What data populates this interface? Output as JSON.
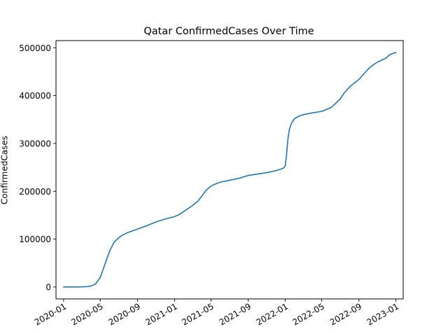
{
  "chart_data": {
    "type": "line",
    "title": "Qatar  ConfirmedCases Over Time",
    "xlabel": "",
    "ylabel": "ConfirmedCases",
    "xlim": [
      "2019-12-07",
      "2023-01-25"
    ],
    "ylim": [
      -25000,
      515000
    ],
    "x_ticks": [
      "2020-01",
      "2020-05",
      "2020-09",
      "2021-01",
      "2021-05",
      "2021-09",
      "2022-01",
      "2022-05",
      "2022-09",
      "2023-01"
    ],
    "y_ticks": [
      "0",
      "100000",
      "200000",
      "300000",
      "400000",
      "500000"
    ],
    "y_tick_values": [
      0,
      100000,
      200000,
      300000,
      400000,
      500000
    ],
    "grid": false,
    "series_color": "#1f77b4",
    "series": [
      {
        "points": [
          [
            "2020-01-01",
            0
          ],
          [
            "2020-02-01",
            0
          ],
          [
            "2020-03-01",
            100
          ],
          [
            "2020-03-20",
            800
          ],
          [
            "2020-04-01",
            2000
          ],
          [
            "2020-04-15",
            6000
          ],
          [
            "2020-05-01",
            20000
          ],
          [
            "2020-05-15",
            45000
          ],
          [
            "2020-06-01",
            75000
          ],
          [
            "2020-06-15",
            93000
          ],
          [
            "2020-07-01",
            103000
          ],
          [
            "2020-07-15",
            109000
          ],
          [
            "2020-08-01",
            114000
          ],
          [
            "2020-09-01",
            121000
          ],
          [
            "2020-10-01",
            128000
          ],
          [
            "2020-11-01",
            136000
          ],
          [
            "2020-12-01",
            142000
          ],
          [
            "2021-01-01",
            147000
          ],
          [
            "2021-01-15",
            151000
          ],
          [
            "2021-02-01",
            158000
          ],
          [
            "2021-03-01",
            170000
          ],
          [
            "2021-03-20",
            180000
          ],
          [
            "2021-04-01",
            190000
          ],
          [
            "2021-04-15",
            202000
          ],
          [
            "2021-05-01",
            211000
          ],
          [
            "2021-05-15",
            215000
          ],
          [
            "2021-06-01",
            219000
          ],
          [
            "2021-07-01",
            223000
          ],
          [
            "2021-08-01",
            227000
          ],
          [
            "2021-09-01",
            233000
          ],
          [
            "2021-10-01",
            236000
          ],
          [
            "2021-11-01",
            239000
          ],
          [
            "2021-12-01",
            243000
          ],
          [
            "2021-12-25",
            248000
          ],
          [
            "2022-01-01",
            253000
          ],
          [
            "2022-01-05",
            275000
          ],
          [
            "2022-01-10",
            310000
          ],
          [
            "2022-01-15",
            330000
          ],
          [
            "2022-01-22",
            343000
          ],
          [
            "2022-02-01",
            352000
          ],
          [
            "2022-02-15",
            357000
          ],
          [
            "2022-03-01",
            360000
          ],
          [
            "2022-04-01",
            364000
          ],
          [
            "2022-05-01",
            367000
          ],
          [
            "2022-06-01",
            375000
          ],
          [
            "2022-06-15",
            383000
          ],
          [
            "2022-07-01",
            393000
          ],
          [
            "2022-07-15",
            406000
          ],
          [
            "2022-08-01",
            418000
          ],
          [
            "2022-09-01",
            434000
          ],
          [
            "2022-10-01",
            455000
          ],
          [
            "2022-10-15",
            463000
          ],
          [
            "2022-11-01",
            470000
          ],
          [
            "2022-12-01",
            479000
          ],
          [
            "2022-12-10",
            485000
          ],
          [
            "2022-12-25",
            489000
          ],
          [
            "2023-01-01",
            490000
          ]
        ]
      }
    ]
  }
}
